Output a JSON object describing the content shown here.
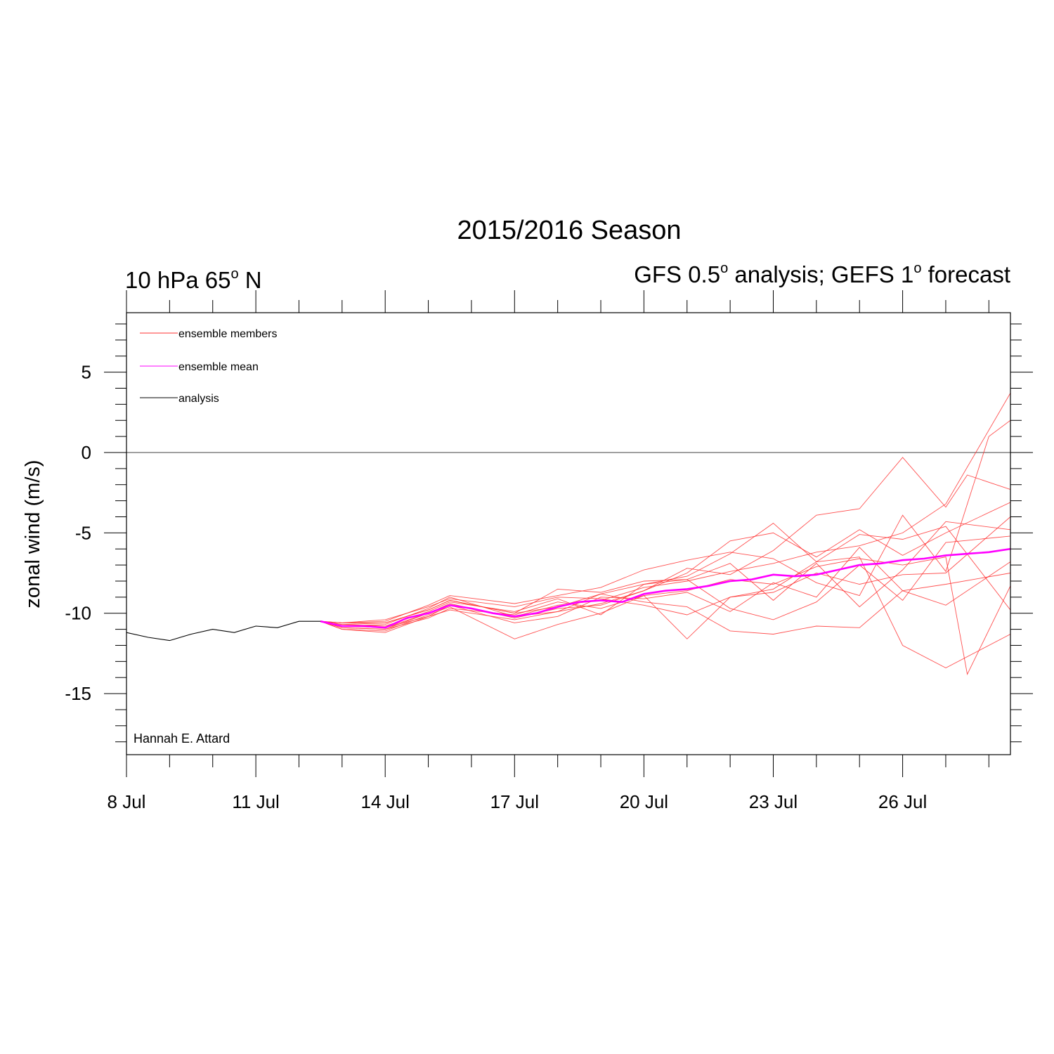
{
  "chart_data": {
    "type": "line",
    "title": "2015/2016 Season",
    "subtitle_left": {
      "text": "10 hPa 65",
      "sup": "o",
      "tail": " N"
    },
    "subtitle_right": {
      "text": "GFS 0.5",
      "sup": "o",
      "mid": " analysis; GEFS 1",
      "sup2": "o",
      "tail": " forecast"
    },
    "ylabel": "zonal wind (m/s)",
    "xlabel": "",
    "credit": "Hannah E. Attard",
    "xlim": [
      8,
      28.5
    ],
    "ylim": [
      -18.8,
      8.7
    ],
    "x_ticks": [
      {
        "x": 8,
        "label": "8 Jul"
      },
      {
        "x": 11,
        "label": "11 Jul"
      },
      {
        "x": 14,
        "label": "14 Jul"
      },
      {
        "x": 17,
        "label": "17 Jul"
      },
      {
        "x": 20,
        "label": "20 Jul"
      },
      {
        "x": 23,
        "label": "23 Jul"
      },
      {
        "x": 26,
        "label": "26 Jul"
      }
    ],
    "y_ticks": [
      {
        "y": 5,
        "label": "5"
      },
      {
        "y": 0,
        "label": "0"
      },
      {
        "y": -5,
        "label": "-5"
      },
      {
        "y": -10,
        "label": "-10"
      },
      {
        "y": -15,
        "label": "-15"
      }
    ],
    "zero_line": true,
    "legend": [
      {
        "label": "ensemble members",
        "color": "#ff3030"
      },
      {
        "label": "ensemble mean",
        "color": "#ff00ff"
      },
      {
        "label": "analysis",
        "color": "#000000"
      }
    ],
    "analysis": {
      "x": [
        8,
        8.5,
        9,
        9.5,
        10,
        10.5,
        11,
        11.5,
        12,
        12.5
      ],
      "y": [
        -11.2,
        -11.5,
        -11.7,
        -11.3,
        -11.0,
        -11.2,
        -10.8,
        -10.9,
        -10.5,
        -10.5
      ]
    },
    "ensemble_mean": {
      "x": [
        12.5,
        13,
        13.5,
        14,
        14.5,
        15,
        15.5,
        16,
        16.5,
        17,
        17.5,
        18,
        18.5,
        19,
        19.5,
        20,
        20.5,
        21,
        21.5,
        22,
        22.5,
        23,
        23.5,
        24,
        24.5,
        25,
        25.5,
        26,
        26.5,
        27,
        27.5,
        28,
        28.5
      ],
      "y": [
        -10.5,
        -10.8,
        -10.8,
        -10.9,
        -10.3,
        -10.0,
        -9.5,
        -9.7,
        -10.0,
        -10.2,
        -10.0,
        -9.6,
        -9.3,
        -9.2,
        -9.3,
        -8.8,
        -8.6,
        -8.5,
        -8.3,
        -8.0,
        -7.9,
        -7.6,
        -7.7,
        -7.6,
        -7.3,
        -7.0,
        -6.9,
        -6.7,
        -6.6,
        -6.4,
        -6.3,
        -6.2,
        -6.0
      ]
    },
    "ensemble_members": [
      {
        "x": [
          12.5,
          13,
          14,
          15,
          15.5,
          17,
          18,
          19,
          20,
          21,
          22,
          23,
          24,
          25,
          26,
          27,
          28.5
        ],
        "y": [
          -10.5,
          -11.0,
          -11.2,
          -10.2,
          -9.8,
          -10.4,
          -9.9,
          -9.4,
          -8.6,
          -7.5,
          -5.5,
          -5.0,
          -6.5,
          -4.8,
          -6.4,
          -5.0,
          -3.1
        ]
      },
      {
        "x": [
          12.5,
          13,
          14,
          15,
          15.5,
          17,
          18,
          19,
          20,
          21,
          22,
          23,
          24,
          25,
          26,
          27,
          28.5
        ],
        "y": [
          -10.5,
          -10.9,
          -11.0,
          -10.0,
          -9.5,
          -10.2,
          -9.5,
          -9.2,
          -8.4,
          -8.0,
          -7.4,
          -6.9,
          -6.2,
          -5.8,
          -5.0,
          -3.2,
          3.7
        ]
      },
      {
        "x": [
          12.5,
          13,
          14,
          15,
          15.5,
          17,
          18,
          19,
          20,
          21,
          22,
          23,
          24,
          25,
          26,
          27,
          28.5
        ],
        "y": [
          -10.5,
          -10.7,
          -10.6,
          -9.8,
          -9.2,
          -10.0,
          -9.6,
          -8.8,
          -8.2,
          -7.7,
          -6.3,
          -4.4,
          -6.8,
          -5.1,
          -5.4,
          -4.6,
          -9.8
        ]
      },
      {
        "x": [
          12.5,
          13,
          14,
          15,
          15.5,
          17,
          18,
          19,
          20,
          21,
          22,
          23,
          24,
          25,
          26,
          27,
          28.5
        ],
        "y": [
          -10.5,
          -10.6,
          -10.4,
          -9.6,
          -9.1,
          -9.6,
          -9.0,
          -9.1,
          -9.5,
          -10.1,
          -9.0,
          -8.7,
          -7.5,
          -8.2,
          -7.6,
          -7.5,
          -4.0
        ]
      },
      {
        "x": [
          12.5,
          13,
          14,
          15,
          15.5,
          17,
          18,
          19,
          20,
          21,
          22,
          23,
          24,
          25,
          26,
          27,
          28.5
        ],
        "y": [
          -10.5,
          -11.0,
          -11.1,
          -10.1,
          -9.6,
          -11.6,
          -10.7,
          -10.0,
          -8.9,
          -11.6,
          -9.0,
          -8.5,
          -6.8,
          -6.5,
          -12.0,
          -13.4,
          -11.3
        ]
      },
      {
        "x": [
          12.5,
          13,
          14,
          15,
          15.5,
          17,
          18,
          19,
          20,
          21,
          22,
          23,
          24,
          25,
          26,
          27,
          27.5,
          28.5
        ],
        "y": [
          -10.5,
          -10.8,
          -10.9,
          -10.0,
          -9.4,
          -10.3,
          -9.7,
          -9.5,
          -8.6,
          -7.2,
          -7.6,
          -6.1,
          -3.9,
          -3.5,
          -0.3,
          -3.4,
          -1.4,
          -2.3
        ]
      },
      {
        "x": [
          12.5,
          13,
          14,
          15,
          15.5,
          17,
          18,
          19,
          20,
          21,
          22,
          23,
          24,
          25,
          26,
          27,
          28.5
        ],
        "y": [
          -10.5,
          -10.8,
          -10.7,
          -9.7,
          -9.0,
          -10.2,
          -9.9,
          -8.8,
          -9.3,
          -9.6,
          -11.1,
          -11.3,
          -10.8,
          -10.9,
          -8.6,
          -8.2,
          -7.5
        ]
      },
      {
        "x": [
          12.5,
          13,
          14,
          15,
          15.5,
          17,
          18,
          19,
          20,
          21,
          22,
          23,
          24,
          25,
          26,
          27,
          28,
          28.5
        ],
        "y": [
          -10.5,
          -10.6,
          -10.5,
          -9.5,
          -8.9,
          -9.4,
          -8.9,
          -8.4,
          -7.3,
          -6.7,
          -6.2,
          -6.6,
          -8.1,
          -8.9,
          -3.9,
          -7.4,
          1.0,
          2.0
        ]
      },
      {
        "x": [
          12.5,
          13,
          14,
          15,
          15.5,
          17,
          18,
          19,
          20,
          21,
          22,
          23,
          24,
          25,
          26,
          27,
          27.5,
          28.5
        ],
        "y": [
          -10.5,
          -10.9,
          -11.0,
          -10.3,
          -9.7,
          -10.1,
          -9.3,
          -9.7,
          -8.9,
          -8.6,
          -7.9,
          -8.2,
          -7.1,
          -6.6,
          -7.0,
          -6.5,
          -13.8,
          -8.3
        ]
      },
      {
        "x": [
          12.5,
          13,
          14,
          15,
          15.5,
          17,
          18,
          19,
          20,
          21,
          22,
          23,
          24,
          25,
          26,
          27,
          28.5
        ],
        "y": [
          -10.5,
          -10.7,
          -10.8,
          -9.9,
          -9.3,
          -9.9,
          -9.1,
          -10.1,
          -8.2,
          -7.9,
          -9.7,
          -10.4,
          -9.3,
          -7.0,
          -9.2,
          -5.6,
          -5.2
        ]
      },
      {
        "x": [
          12.5,
          13,
          14,
          15,
          15.5,
          17,
          18,
          19,
          20,
          21,
          22,
          23,
          24,
          25,
          26,
          27,
          28.5
        ],
        "y": [
          -10.5,
          -10.8,
          -10.9,
          -10.2,
          -9.5,
          -10.6,
          -10.2,
          -9.0,
          -9.1,
          -8.7,
          -9.9,
          -8.1,
          -9.0,
          -5.9,
          -8.6,
          -9.5,
          -6.8
        ]
      },
      {
        "x": [
          12.5,
          13,
          14,
          15,
          15.5,
          17,
          18,
          19,
          20,
          21,
          22,
          23,
          24,
          25,
          26,
          27,
          28.5
        ],
        "y": [
          -10.5,
          -10.6,
          -10.6,
          -9.8,
          -9.2,
          -10.0,
          -8.5,
          -8.7,
          -8.0,
          -7.9,
          -6.9,
          -9.2,
          -6.9,
          -9.6,
          -7.3,
          -4.3,
          -4.8
        ]
      }
    ]
  }
}
